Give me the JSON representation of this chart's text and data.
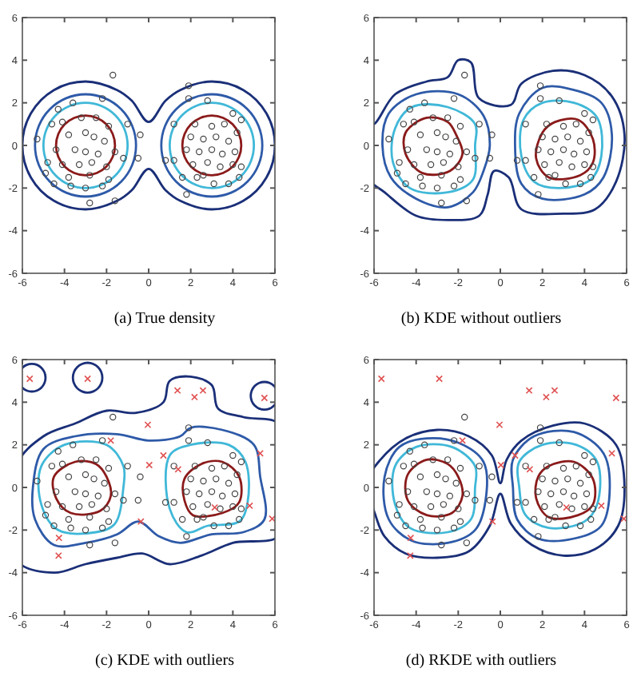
{
  "chart_data": [
    {
      "type": "scatter",
      "title": "(a) True density",
      "xlim": [
        -6,
        6
      ],
      "ylim": [
        -6,
        6
      ],
      "xticks": [
        -6,
        -4,
        -2,
        0,
        2,
        4,
        6
      ],
      "yticks": [
        -6,
        -4,
        -2,
        0,
        2,
        4,
        6
      ],
      "series": [
        {
          "type": "scatter",
          "marker": "circle",
          "color": "#444444",
          "x": [
            -1.7,
            -4.3,
            -3.6,
            -2.2,
            -5.3,
            -4.6,
            -4.1,
            -3.2,
            -2.5,
            -1.9,
            -1.0,
            -3.8,
            -3.0,
            -2.6,
            -2.1,
            -4.4,
            -3.5,
            -3.0,
            -2.4,
            -1.6,
            -4.8,
            -4.1,
            -3.3,
            -2.7,
            -2.0,
            -1.2,
            -4.9,
            -3.8,
            -2.8,
            -1.9,
            -4.5,
            -3.7,
            -3.0,
            -2.2,
            -2.8,
            -1.6,
            -0.4,
            -0.5,
            1.9,
            1.9,
            2.8,
            4.0,
            4.4,
            1.2,
            2.2,
            3.0,
            3.6,
            2.0,
            2.6,
            3.2,
            3.8,
            4.2,
            1.8,
            2.4,
            3.0,
            3.5,
            4.1,
            1.2,
            2.1,
            2.8,
            3.4,
            4.0,
            4.4,
            1.6,
            2.3,
            3.1,
            3.8,
            4.3,
            1.8,
            2.6,
            0.8
          ],
          "values": [
            3.3,
            1.7,
            2.0,
            2.2,
            0.3,
            1.0,
            1.1,
            1.3,
            1.3,
            0.9,
            1.0,
            0.5,
            0.6,
            0.4,
            0.2,
            -0.2,
            -0.2,
            -0.3,
            -0.4,
            -0.3,
            -0.8,
            -0.9,
            -0.9,
            -0.8,
            -1.0,
            -0.6,
            -1.3,
            -1.5,
            -1.4,
            -1.6,
            -1.8,
            -1.9,
            -2.0,
            -1.9,
            -2.7,
            -2.6,
            0.5,
            -0.6,
            2.8,
            2.2,
            2.1,
            1.5,
            1.2,
            1.0,
            1.0,
            0.9,
            1.0,
            0.4,
            0.3,
            0.4,
            0.2,
            0.6,
            -0.2,
            -0.3,
            -0.2,
            -0.4,
            -0.3,
            -0.7,
            -0.9,
            -0.8,
            -1.0,
            -0.9,
            -1.0,
            -1.5,
            -1.5,
            -1.8,
            -1.8,
            -1.5,
            -2.3,
            -1.4,
            -0.7
          ]
        }
      ]
    },
    {
      "type": "scatter",
      "title": "(b) KDE without outliers",
      "xlim": [
        -6,
        6
      ],
      "ylim": [
        -6,
        6
      ],
      "xticks": [
        -6,
        -4,
        -2,
        0,
        2,
        4,
        6
      ],
      "yticks": [
        -6,
        -4,
        -2,
        0,
        2,
        4,
        6
      ],
      "series": [
        {
          "type": "scatter",
          "marker": "circle",
          "color": "#444444",
          "x": [
            -1.7,
            -4.3,
            -3.6,
            -2.2,
            -5.3,
            -4.6,
            -4.1,
            -3.2,
            -2.5,
            -1.9,
            -1.0,
            -3.8,
            -3.0,
            -2.6,
            -2.1,
            -4.4,
            -3.5,
            -3.0,
            -2.4,
            -1.6,
            -4.8,
            -4.1,
            -3.3,
            -2.7,
            -2.0,
            -1.2,
            -4.9,
            -3.8,
            -2.8,
            -1.9,
            -4.5,
            -3.7,
            -3.0,
            -2.2,
            -2.8,
            -1.6,
            -0.4,
            -0.5,
            1.9,
            1.9,
            2.8,
            4.0,
            4.4,
            1.2,
            2.2,
            3.0,
            3.6,
            2.0,
            2.6,
            3.2,
            3.8,
            4.2,
            1.8,
            2.4,
            3.0,
            3.5,
            4.1,
            1.2,
            2.1,
            2.8,
            3.4,
            4.0,
            4.4,
            1.6,
            2.3,
            3.1,
            3.8,
            4.3,
            1.8,
            2.6,
            0.8
          ],
          "values": [
            3.3,
            1.7,
            2.0,
            2.2,
            0.3,
            1.0,
            1.1,
            1.3,
            1.3,
            0.9,
            1.0,
            0.5,
            0.6,
            0.4,
            0.2,
            -0.2,
            -0.2,
            -0.3,
            -0.4,
            -0.3,
            -0.8,
            -0.9,
            -0.9,
            -0.8,
            -1.0,
            -0.6,
            -1.3,
            -1.5,
            -1.4,
            -1.6,
            -1.8,
            -1.9,
            -2.0,
            -1.9,
            -2.7,
            -2.6,
            0.5,
            -0.6,
            2.8,
            2.2,
            2.1,
            1.5,
            1.2,
            1.0,
            1.0,
            0.9,
            1.0,
            0.4,
            0.3,
            0.4,
            0.2,
            0.6,
            -0.2,
            -0.3,
            -0.2,
            -0.4,
            -0.3,
            -0.7,
            -0.9,
            -0.8,
            -1.0,
            -0.9,
            -1.0,
            -1.5,
            -1.5,
            -1.8,
            -1.8,
            -1.5,
            -2.3,
            -1.4,
            -0.7
          ]
        }
      ]
    },
    {
      "type": "scatter",
      "title": "(c) KDE with outliers",
      "xlim": [
        -6,
        6
      ],
      "ylim": [
        -6,
        6
      ],
      "xticks": [
        -6,
        -4,
        -2,
        0,
        2,
        4,
        6
      ],
      "yticks": [
        -6,
        -4,
        -2,
        0,
        2,
        4,
        6
      ],
      "series": [
        {
          "type": "scatter",
          "marker": "circle",
          "color": "#444444",
          "x": [
            -1.7,
            -4.3,
            -3.6,
            -2.2,
            -5.3,
            -4.6,
            -4.1,
            -3.2,
            -2.5,
            -1.9,
            -1.0,
            -3.8,
            -3.0,
            -2.6,
            -2.1,
            -4.4,
            -3.5,
            -3.0,
            -2.4,
            -1.6,
            -4.8,
            -4.1,
            -3.3,
            -2.7,
            -2.0,
            -1.2,
            -4.9,
            -3.8,
            -2.8,
            -1.9,
            -4.5,
            -3.7,
            -3.0,
            -2.2,
            -2.8,
            -1.6,
            -0.4,
            -0.5,
            1.9,
            1.9,
            2.8,
            4.0,
            4.4,
            1.2,
            2.2,
            3.0,
            3.6,
            2.0,
            2.6,
            3.2,
            3.8,
            4.2,
            1.8,
            2.4,
            3.0,
            3.5,
            4.1,
            1.2,
            2.1,
            2.8,
            3.4,
            4.0,
            4.4,
            1.6,
            2.3,
            3.1,
            3.8,
            4.3,
            1.8,
            2.6,
            0.8
          ],
          "values": [
            3.3,
            1.7,
            2.0,
            2.2,
            0.3,
            1.0,
            1.1,
            1.3,
            1.3,
            0.9,
            1.0,
            0.5,
            0.6,
            0.4,
            0.2,
            -0.2,
            -0.2,
            -0.3,
            -0.4,
            -0.3,
            -0.8,
            -0.9,
            -0.9,
            -0.8,
            -1.0,
            -0.6,
            -1.3,
            -1.5,
            -1.4,
            -1.6,
            -1.8,
            -1.9,
            -2.0,
            -1.9,
            -2.7,
            -2.6,
            0.5,
            -0.6,
            2.8,
            2.2,
            2.1,
            1.5,
            1.2,
            1.0,
            1.0,
            0.9,
            1.0,
            0.4,
            0.3,
            0.4,
            0.2,
            0.6,
            -0.2,
            -0.3,
            -0.2,
            -0.4,
            -0.3,
            -0.7,
            -0.9,
            -0.8,
            -1.0,
            -0.9,
            -1.0,
            -1.5,
            -1.5,
            -1.8,
            -1.8,
            -1.5,
            -2.3,
            -1.4,
            -0.7
          ]
        },
        {
          "type": "scatter",
          "marker": "cross",
          "color": "#e05050",
          "x": [
            -5.65,
            -2.9,
            1.37,
            2.18,
            2.58,
            5.5,
            -0.04,
            -1.8,
            0.7,
            1.4,
            0.03,
            5.3,
            4.8,
            5.87,
            -0.37,
            -4.26,
            -4.28,
            3.14
          ],
          "values": [
            5.1,
            5.1,
            4.55,
            4.24,
            4.55,
            4.2,
            2.94,
            2.2,
            1.5,
            0.85,
            1.05,
            1.6,
            -0.86,
            -1.47,
            -1.6,
            -2.37,
            -3.2,
            -0.94
          ]
        }
      ]
    },
    {
      "type": "scatter",
      "title": "(d) RKDE with outliers",
      "xlim": [
        -6,
        6
      ],
      "ylim": [
        -6,
        6
      ],
      "xticks": [
        -6,
        -4,
        -2,
        0,
        2,
        4,
        6
      ],
      "yticks": [
        -6,
        -4,
        -2,
        0,
        2,
        4,
        6
      ],
      "series": [
        {
          "type": "scatter",
          "marker": "circle",
          "color": "#444444",
          "x": [
            -1.7,
            -4.3,
            -3.6,
            -2.2,
            -5.3,
            -4.6,
            -4.1,
            -3.2,
            -2.5,
            -1.9,
            -1.0,
            -3.8,
            -3.0,
            -2.6,
            -2.1,
            -4.4,
            -3.5,
            -3.0,
            -2.4,
            -1.6,
            -4.8,
            -4.1,
            -3.3,
            -2.7,
            -2.0,
            -1.2,
            -4.9,
            -3.8,
            -2.8,
            -1.9,
            -4.5,
            -3.7,
            -3.0,
            -2.2,
            -2.8,
            -1.6,
            -0.4,
            -0.5,
            1.9,
            1.9,
            2.8,
            4.0,
            4.4,
            1.2,
            2.2,
            3.0,
            3.6,
            2.0,
            2.6,
            3.2,
            3.8,
            4.2,
            1.8,
            2.4,
            3.0,
            3.5,
            4.1,
            1.2,
            2.1,
            2.8,
            3.4,
            4.0,
            4.4,
            1.6,
            2.3,
            3.1,
            3.8,
            4.3,
            1.8,
            2.6,
            0.8
          ],
          "values": [
            3.3,
            1.7,
            2.0,
            2.2,
            0.3,
            1.0,
            1.1,
            1.3,
            1.3,
            0.9,
            1.0,
            0.5,
            0.6,
            0.4,
            0.2,
            -0.2,
            -0.2,
            -0.3,
            -0.4,
            -0.3,
            -0.8,
            -0.9,
            -0.9,
            -0.8,
            -1.0,
            -0.6,
            -1.3,
            -1.5,
            -1.4,
            -1.6,
            -1.8,
            -1.9,
            -2.0,
            -1.9,
            -2.7,
            -2.6,
            0.5,
            -0.6,
            2.8,
            2.2,
            2.1,
            1.5,
            1.2,
            1.0,
            1.0,
            0.9,
            1.0,
            0.4,
            0.3,
            0.4,
            0.2,
            0.6,
            -0.2,
            -0.3,
            -0.2,
            -0.4,
            -0.3,
            -0.7,
            -0.9,
            -0.8,
            -1.0,
            -0.9,
            -1.0,
            -1.5,
            -1.5,
            -1.8,
            -1.8,
            -1.5,
            -2.3,
            -1.4,
            -0.7
          ]
        },
        {
          "type": "scatter",
          "marker": "cross",
          "color": "#e05050",
          "x": [
            -5.65,
            -2.9,
            1.37,
            2.18,
            2.58,
            5.5,
            -0.04,
            -1.8,
            0.7,
            1.4,
            0.03,
            5.3,
            4.8,
            5.87,
            -0.37,
            -4.26,
            -4.28,
            3.14
          ],
          "values": [
            5.1,
            5.1,
            4.55,
            4.24,
            4.55,
            4.2,
            2.94,
            2.2,
            1.5,
            0.85,
            1.05,
            1.6,
            -0.86,
            -1.47,
            -1.6,
            -2.37,
            -3.2,
            -0.94
          ]
        }
      ]
    }
  ]
}
